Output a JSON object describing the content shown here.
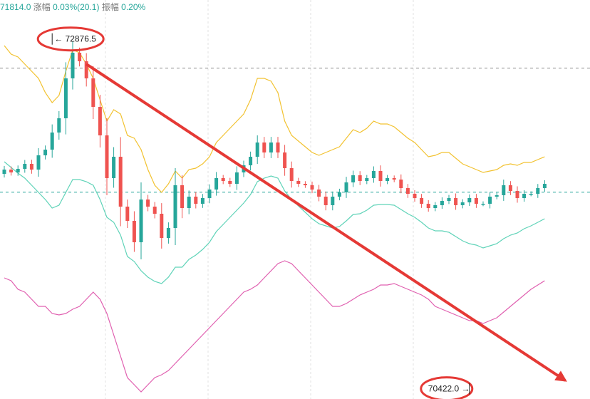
{
  "header": {
    "price": "71814.0",
    "change_label": "涨幅",
    "change_value": "0.03%(20.1)",
    "amplitude_label": "振幅",
    "amplitude_value": "0.20%"
  },
  "annotations": {
    "high_label": "← 72876.5",
    "low_label": "70422.0 →",
    "arrow_from": {
      "x": 12,
      "y": 72700
    },
    "arrow_to": {
      "x": 82,
      "y": 70480
    }
  },
  "colors": {
    "up": "#26a69a",
    "down": "#ef5350",
    "upper_band": "#f2c230",
    "middle_band": "#5fd3b8",
    "lower_band": "#e060b0",
    "grid": "#e0e0e0",
    "dashed": "#8a8a8a",
    "teal_dashed": "#26a69a",
    "annotation": "#e53935"
  },
  "chart_data": {
    "type": "candlestick",
    "y_range": [
      70350,
      73150
    ],
    "reference_lines": [
      72672,
      71801
    ],
    "series": [
      {
        "name": "",
        "values": [
          71960,
          71940,
          71965,
          72000,
          71960,
          72060,
          72100,
          72220,
          72320,
          72600,
          72780,
          72720,
          72600,
          72400,
          72200,
          71900,
          72050,
          71700,
          71600,
          71450,
          71750,
          71700,
          71650,
          71480,
          71550,
          71850,
          71690,
          71770,
          71720,
          71760,
          71820,
          71900,
          71880,
          71860,
          71940,
          71990,
          72050,
          72150,
          72080,
          72150,
          72080,
          71970,
          71880,
          71860,
          71850,
          71820,
          71770,
          71710,
          71770,
          71800,
          71870,
          71920,
          71880,
          71900,
          71950,
          71880,
          71900,
          71890,
          71830,
          71790,
          71760,
          71720,
          71690,
          71710,
          71740,
          71760,
          71710,
          71730,
          71760,
          71720,
          71720,
          71770,
          71780,
          71850,
          71810,
          71760,
          71790,
          71790,
          71830,
          71860
        ]
      },
      {
        "name": "",
        "values": [
          72830,
          72770,
          72750,
          72700,
          72650,
          72600,
          72500,
          72430,
          72480,
          72650,
          72800,
          72780,
          72700,
          72600,
          72450,
          72300,
          72380,
          72350,
          72200,
          72180,
          72100,
          71960,
          71850,
          71800,
          71860,
          71950,
          71900,
          71960,
          71970,
          72000,
          72050,
          72150,
          72200,
          72250,
          72300,
          72350,
          72450,
          72600,
          72600,
          72580,
          72500,
          72300,
          72200,
          72160,
          72120,
          72080,
          72060,
          72080,
          72100,
          72120,
          72180,
          72240,
          72220,
          72250,
          72300,
          72280,
          72280,
          72260,
          72220,
          72180,
          72150,
          72100,
          72050,
          72060,
          72080,
          72080,
          72040,
          72000,
          71980,
          71960,
          71940,
          71950,
          71960,
          71990,
          72000,
          71990,
          72010,
          72010,
          72030,
          72050
        ]
      },
      {
        "name": "",
        "values": [
          71200,
          71180,
          71120,
          71100,
          71050,
          71000,
          71000,
          70950,
          70940,
          70950,
          70980,
          71000,
          71050,
          71100,
          71050,
          70950,
          70800,
          70650,
          70500,
          70450,
          70400,
          70450,
          70500,
          70520,
          70550,
          70600,
          70650,
          70700,
          70750,
          70800,
          70850,
          70900,
          70950,
          71000,
          71050,
          71100,
          71120,
          71150,
          71200,
          71250,
          71300,
          71320,
          71300,
          71250,
          71200,
          71150,
          71100,
          71050,
          71000,
          71000,
          71020,
          71050,
          71080,
          71100,
          71120,
          71150,
          71150,
          71160,
          71140,
          71120,
          71100,
          71080,
          71050,
          71000,
          70980,
          70960,
          70940,
          70920,
          70900,
          70900,
          70880,
          70900,
          70920,
          70960,
          71000,
          71040,
          71080,
          71120,
          71150,
          71180
        ]
      },
      {
        "name": "",
        "values": [
          72015,
          71975,
          71935,
          71900,
          71850,
          71800,
          71750,
          71690,
          71710,
          71800,
          71890,
          71890,
          71875,
          71850,
          71750,
          71625,
          71590,
          71500,
          71350,
          71315,
          71250,
          71205,
          71175,
          71160,
          71205,
          71275,
          71275,
          71330,
          71360,
          71400,
          71450,
          71525,
          71575,
          71625,
          71675,
          71725,
          71785,
          71875,
          71900,
          71915,
          71900,
          71810,
          71750,
          71705,
          71660,
          71615,
          71580,
          71565,
          71550,
          71560,
          71600,
          71645,
          71650,
          71675,
          71710,
          71715,
          71715,
          71710,
          71680,
          71650,
          71625,
          71590,
          71550,
          71530,
          71530,
          71520,
          71490,
          71460,
          71440,
          71430,
          71410,
          71425,
          71440,
          71475,
          71500,
          71515,
          71545,
          71565,
          71590,
          71615
        ]
      }
    ]
  }
}
